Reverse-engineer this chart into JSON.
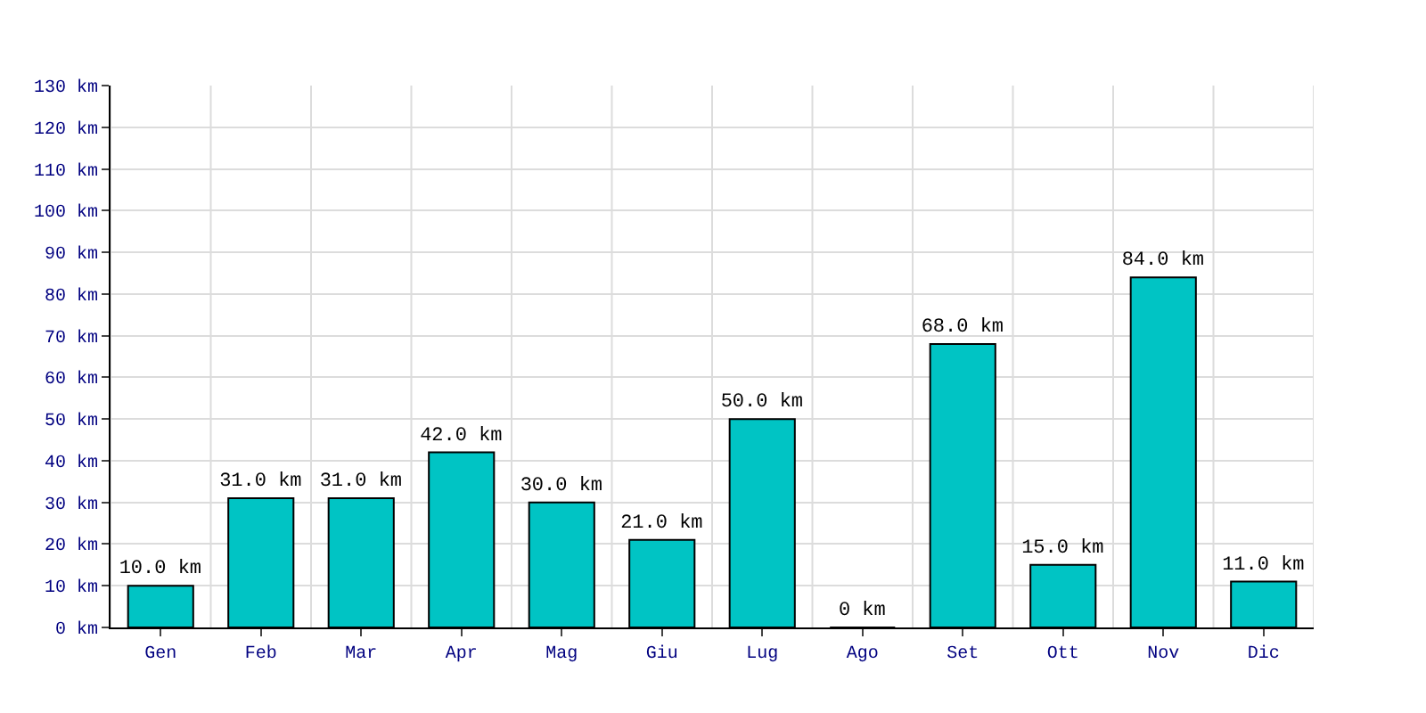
{
  "chart_data": {
    "type": "bar",
    "categories": [
      "Gen",
      "Feb",
      "Mar",
      "Apr",
      "Mag",
      "Giu",
      "Lug",
      "Ago",
      "Set",
      "Ott",
      "Nov",
      "Dic"
    ],
    "values": [
      10.0,
      31.0,
      31.0,
      42.0,
      30.0,
      21.0,
      50.0,
      0,
      68.0,
      15.0,
      84.0,
      11.0
    ],
    "value_labels": [
      "10.0 km",
      "31.0 km",
      "31.0 km",
      "42.0 km",
      "30.0 km",
      "21.0 km",
      "50.0 km",
      "0 km",
      "68.0 km",
      "15.0 km",
      "84.0 km",
      "11.0 km"
    ],
    "color": "#00c4c4",
    "ylim": [
      0,
      130
    ],
    "yticks": [
      {
        "value": 0,
        "label": "0 km"
      },
      {
        "value": 10,
        "label": "10 km"
      },
      {
        "value": 20,
        "label": "20 km"
      },
      {
        "value": 30,
        "label": "30 km"
      },
      {
        "value": 40,
        "label": "40 km"
      },
      {
        "value": 50,
        "label": "50 km"
      },
      {
        "value": 60,
        "label": "60 km"
      },
      {
        "value": 70,
        "label": "70 km"
      },
      {
        "value": 80,
        "label": "80 km"
      },
      {
        "value": 90,
        "label": "90 km"
      },
      {
        "value": 100,
        "label": "100 km"
      },
      {
        "value": 110,
        "label": "110 km"
      },
      {
        "value": 120,
        "label": "120 km"
      },
      {
        "value": 130,
        "label": "130 km"
      }
    ],
    "grid": true
  }
}
